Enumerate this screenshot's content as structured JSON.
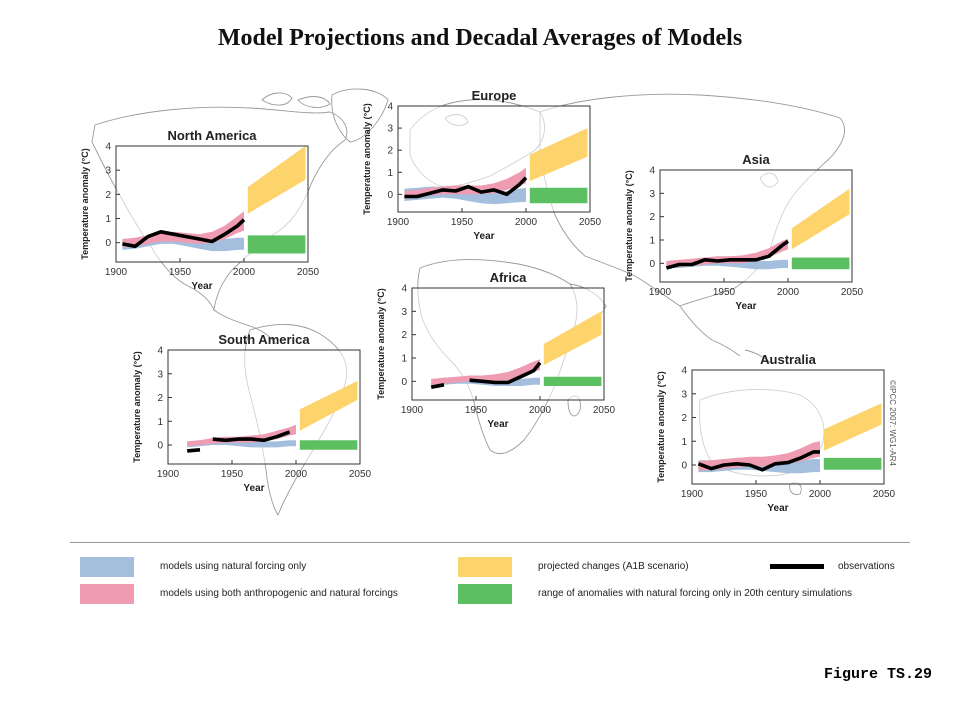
{
  "title": "Model Projections and Decadal Averages of Models",
  "figure_label": "Figure TS.29",
  "copyright": "©IPCC 2007: WG1-AR4",
  "colors": {
    "natural": "#a3bfdd",
    "anthro": "#ef9bb2",
    "projected": "#fdd36b",
    "natural_range": "#5cbf62",
    "observations": "#000000",
    "map_lines": "#999999"
  },
  "legend": {
    "natural": "models using natural forcing only",
    "anthro": "models using both anthropogenic and natural forcings",
    "projected": "projected changes (A1B scenario)",
    "natural_range": "range of anomalies with natural forcing only in 20th century simulations",
    "observations": "observations"
  },
  "chart_data": [
    {
      "type": "area",
      "title": "North America",
      "xlabel": "Year",
      "ylabel": "Temperature anomaly (°C)",
      "xlim": [
        1900,
        2050
      ],
      "ylim": [
        -0.8,
        4
      ],
      "xticks": [
        "1900",
        "1950",
        "2000",
        "2050"
      ],
      "yticks": [
        "0",
        "1",
        "2",
        "3",
        "4"
      ],
      "observations": {
        "x": [
          1905,
          1915,
          1925,
          1935,
          1945,
          1955,
          1965,
          1975,
          1985,
          1995,
          2000
        ],
        "y": [
          -0.05,
          -0.15,
          0.25,
          0.45,
          0.35,
          0.25,
          0.15,
          0.05,
          0.35,
          0.7,
          0.95
        ],
        "gaps": []
      },
      "natural_band": {
        "x": [
          1905,
          1915,
          1925,
          1935,
          1945,
          1955,
          1965,
          1975,
          1985,
          1995,
          2000
        ],
        "lower": [
          -0.3,
          -0.25,
          -0.15,
          -0.05,
          -0.05,
          -0.15,
          -0.25,
          -0.35,
          -0.35,
          -0.3,
          -0.3
        ],
        "upper": [
          0.15,
          0.2,
          0.3,
          0.4,
          0.4,
          0.3,
          0.2,
          0.15,
          0.15,
          0.2,
          0.2
        ]
      },
      "anthro_band": {
        "x": [
          1905,
          1915,
          1925,
          1935,
          1945,
          1955,
          1965,
          1975,
          1985,
          1995,
          2000
        ],
        "lower": [
          -0.2,
          -0.15,
          -0.05,
          0.05,
          0.05,
          0.0,
          -0.05,
          0.0,
          0.15,
          0.4,
          0.5
        ],
        "upper": [
          0.15,
          0.2,
          0.3,
          0.4,
          0.45,
          0.4,
          0.35,
          0.45,
          0.7,
          1.1,
          1.3
        ]
      },
      "projected_band": {
        "x": [
          2003,
          2048
        ],
        "lower": [
          1.2,
          2.6
        ],
        "upper": [
          2.3,
          4.0
        ]
      },
      "natural_range": {
        "x": [
          2003,
          2048
        ],
        "lower": [
          -0.45,
          -0.45
        ],
        "upper": [
          0.3,
          0.3
        ]
      }
    },
    {
      "type": "area",
      "title": "Europe",
      "xlabel": "Year",
      "ylabel": "Temperature anomaly (°C)",
      "xlim": [
        1900,
        2050
      ],
      "ylim": [
        -0.8,
        4
      ],
      "xticks": [
        "1900",
        "1950",
        "2000",
        "2050"
      ],
      "yticks": [
        "0",
        "1",
        "2",
        "3",
        "4"
      ],
      "observations": {
        "x": [
          1905,
          1915,
          1925,
          1935,
          1945,
          1955,
          1965,
          1975,
          1985,
          1995,
          2000
        ],
        "y": [
          -0.1,
          -0.1,
          0.05,
          0.2,
          0.15,
          0.35,
          0.1,
          0.2,
          0.0,
          0.45,
          0.75
        ],
        "gaps": []
      },
      "natural_band": {
        "x": [
          1905,
          1915,
          1925,
          1935,
          1945,
          1955,
          1965,
          1975,
          1985,
          1995,
          2000
        ],
        "lower": [
          -0.3,
          -0.25,
          -0.2,
          -0.15,
          -0.2,
          -0.3,
          -0.4,
          -0.45,
          -0.4,
          -0.35,
          -0.35
        ],
        "upper": [
          0.25,
          0.3,
          0.35,
          0.35,
          0.3,
          0.2,
          0.1,
          0.1,
          0.15,
          0.25,
          0.3
        ]
      },
      "anthro_band": {
        "x": [
          1905,
          1915,
          1925,
          1935,
          1945,
          1955,
          1965,
          1975,
          1985,
          1995,
          2000
        ],
        "lower": [
          -0.2,
          -0.15,
          -0.05,
          0.0,
          0.0,
          0.0,
          0.0,
          0.05,
          0.2,
          0.4,
          0.5
        ],
        "upper": [
          0.15,
          0.2,
          0.3,
          0.35,
          0.4,
          0.4,
          0.4,
          0.5,
          0.7,
          1.0,
          1.2
        ]
      },
      "projected_band": {
        "x": [
          2003,
          2048
        ],
        "lower": [
          0.6,
          1.7
        ],
        "upper": [
          1.8,
          3.0
        ]
      },
      "natural_range": {
        "x": [
          2003,
          2048
        ],
        "lower": [
          -0.4,
          -0.4
        ],
        "upper": [
          0.3,
          0.3
        ]
      }
    },
    {
      "type": "area",
      "title": "Asia",
      "xlabel": "Year",
      "ylabel": "Temperature anomaly (°C)",
      "xlim": [
        1900,
        2050
      ],
      "ylim": [
        -0.8,
        4
      ],
      "xticks": [
        "1900",
        "1950",
        "2000",
        "2050"
      ],
      "yticks": [
        "0",
        "1",
        "2",
        "3",
        "4"
      ],
      "observations": {
        "x": [
          1905,
          1915,
          1925,
          1935,
          1945,
          1955,
          1965,
          1975,
          1985,
          1995,
          2000
        ],
        "y": [
          -0.2,
          -0.05,
          -0.05,
          0.15,
          0.1,
          0.15,
          0.15,
          0.15,
          0.3,
          0.75,
          0.95
        ],
        "gaps": []
      },
      "natural_band": {
        "x": [
          1905,
          1915,
          1925,
          1935,
          1945,
          1955,
          1965,
          1975,
          1985,
          1995,
          2000
        ],
        "lower": [
          -0.2,
          -0.2,
          -0.15,
          -0.1,
          -0.1,
          -0.15,
          -0.2,
          -0.25,
          -0.25,
          -0.2,
          -0.2
        ],
        "upper": [
          0.1,
          0.1,
          0.15,
          0.2,
          0.2,
          0.15,
          0.15,
          0.1,
          0.1,
          0.15,
          0.15
        ]
      },
      "anthro_band": {
        "x": [
          1905,
          1915,
          1925,
          1935,
          1945,
          1955,
          1965,
          1975,
          1985,
          1995,
          2000
        ],
        "lower": [
          -0.2,
          -0.15,
          -0.1,
          -0.05,
          0.0,
          0.0,
          0.0,
          0.1,
          0.25,
          0.5,
          0.6
        ],
        "upper": [
          0.1,
          0.15,
          0.2,
          0.25,
          0.3,
          0.3,
          0.35,
          0.45,
          0.65,
          0.95,
          1.05
        ]
      },
      "projected_band": {
        "x": [
          2003,
          2048
        ],
        "lower": [
          0.6,
          2.1
        ],
        "upper": [
          1.5,
          3.2
        ]
      },
      "natural_range": {
        "x": [
          2003,
          2048
        ],
        "lower": [
          -0.25,
          -0.25
        ],
        "upper": [
          0.25,
          0.25
        ]
      }
    },
    {
      "type": "area",
      "title": "Africa",
      "xlabel": "Year",
      "ylabel": "Temperature anomaly (°C)",
      "xlim": [
        1900,
        2050
      ],
      "ylim": [
        -0.8,
        4
      ],
      "xticks": [
        "1900",
        "1950",
        "2000",
        "2050"
      ],
      "yticks": [
        "0",
        "1",
        "2",
        "3",
        "4"
      ],
      "observations": {
        "x": [
          1915,
          1925,
          1935,
          1945,
          1955,
          1965,
          1975,
          1985,
          1995,
          2000
        ],
        "y": [
          -0.25,
          -0.15,
          -0.05,
          0.05,
          0.0,
          -0.05,
          -0.05,
          0.2,
          0.45,
          0.8
        ],
        "gaps": [
          1,
          2
        ]
      },
      "natural_band": {
        "x": [
          1915,
          1925,
          1935,
          1945,
          1955,
          1965,
          1975,
          1985,
          1995,
          2000
        ],
        "lower": [
          -0.2,
          -0.15,
          -0.1,
          -0.1,
          -0.15,
          -0.2,
          -0.2,
          -0.2,
          -0.15,
          -0.15
        ],
        "upper": [
          0.1,
          0.15,
          0.2,
          0.2,
          0.15,
          0.1,
          0.1,
          0.1,
          0.15,
          0.15
        ]
      },
      "anthro_band": {
        "x": [
          1915,
          1925,
          1935,
          1945,
          1955,
          1965,
          1975,
          1985,
          1995,
          2000
        ],
        "lower": [
          -0.15,
          -0.1,
          -0.05,
          0.0,
          0.0,
          0.0,
          0.05,
          0.2,
          0.4,
          0.5
        ],
        "upper": [
          0.1,
          0.15,
          0.2,
          0.25,
          0.25,
          0.3,
          0.4,
          0.6,
          0.85,
          0.95
        ]
      },
      "projected_band": {
        "x": [
          2003,
          2048
        ],
        "lower": [
          0.7,
          2.0
        ],
        "upper": [
          1.6,
          3.0
        ]
      },
      "natural_range": {
        "x": [
          2003,
          2048
        ],
        "lower": [
          -0.2,
          -0.2
        ],
        "upper": [
          0.2,
          0.2
        ]
      }
    },
    {
      "type": "area",
      "title": "South America",
      "xlabel": "Year",
      "ylabel": "Temperature anomaly (°C)",
      "xlim": [
        1900,
        2050
      ],
      "ylim": [
        -0.8,
        4
      ],
      "xticks": [
        "1900",
        "1950",
        "2000",
        "2050"
      ],
      "yticks": [
        "0",
        "1",
        "2",
        "3",
        "4"
      ],
      "observations": {
        "x": [
          1915,
          1925,
          1935,
          1945,
          1955,
          1965,
          1975,
          1985,
          1995
        ],
        "y": [
          -0.25,
          -0.2,
          0.25,
          0.2,
          0.25,
          0.25,
          0.2,
          0.35,
          0.55
        ],
        "gaps": [
          1
        ]
      },
      "natural_band": {
        "x": [
          1915,
          1925,
          1935,
          1945,
          1955,
          1965,
          1975,
          1985,
          1995,
          2000
        ],
        "lower": [
          -0.1,
          -0.05,
          0.0,
          0.0,
          -0.05,
          -0.1,
          -0.1,
          -0.1,
          -0.05,
          -0.05
        ],
        "upper": [
          0.15,
          0.2,
          0.25,
          0.25,
          0.2,
          0.2,
          0.15,
          0.15,
          0.2,
          0.2
        ]
      },
      "anthro_band": {
        "x": [
          1915,
          1925,
          1935,
          1945,
          1955,
          1965,
          1975,
          1985,
          1995,
          2000
        ],
        "lower": [
          -0.05,
          0.0,
          0.05,
          0.1,
          0.1,
          0.1,
          0.15,
          0.25,
          0.4,
          0.45
        ],
        "upper": [
          0.15,
          0.2,
          0.3,
          0.35,
          0.35,
          0.4,
          0.45,
          0.6,
          0.75,
          0.85
        ]
      },
      "projected_band": {
        "x": [
          2003,
          2048
        ],
        "lower": [
          0.6,
          1.9
        ],
        "upper": [
          1.5,
          2.7
        ]
      },
      "natural_range": {
        "x": [
          2003,
          2048
        ],
        "lower": [
          -0.2,
          -0.2
        ],
        "upper": [
          0.2,
          0.2
        ]
      }
    },
    {
      "type": "area",
      "title": "Australia",
      "xlabel": "Year",
      "ylabel": "Temperature anomaly (°C)",
      "xlim": [
        1900,
        2050
      ],
      "ylim": [
        -0.8,
        4
      ],
      "xticks": [
        "1900",
        "1950",
        "2000",
        "2050"
      ],
      "yticks": [
        "0",
        "1",
        "2",
        "3",
        "4"
      ],
      "observations": {
        "x": [
          1905,
          1915,
          1925,
          1935,
          1945,
          1955,
          1965,
          1975,
          1985,
          1995,
          2000
        ],
        "y": [
          0.05,
          -0.15,
          0.0,
          0.05,
          0.0,
          -0.2,
          0.05,
          0.1,
          0.3,
          0.55,
          0.55
        ],
        "gaps": []
      },
      "natural_band": {
        "x": [
          1905,
          1915,
          1925,
          1935,
          1945,
          1955,
          1965,
          1975,
          1985,
          1995,
          2000
        ],
        "lower": [
          -0.3,
          -0.3,
          -0.25,
          -0.2,
          -0.2,
          -0.25,
          -0.3,
          -0.35,
          -0.35,
          -0.3,
          -0.3
        ],
        "upper": [
          0.2,
          0.2,
          0.25,
          0.3,
          0.3,
          0.25,
          0.2,
          0.2,
          0.2,
          0.25,
          0.25
        ]
      },
      "anthro_band": {
        "x": [
          1905,
          1915,
          1925,
          1935,
          1945,
          1955,
          1965,
          1975,
          1985,
          1995,
          2000
        ],
        "lower": [
          -0.25,
          -0.2,
          -0.15,
          -0.1,
          -0.05,
          -0.05,
          0.0,
          0.05,
          0.15,
          0.3,
          0.35
        ],
        "upper": [
          0.15,
          0.2,
          0.25,
          0.3,
          0.35,
          0.35,
          0.4,
          0.5,
          0.7,
          0.95,
          1.0
        ]
      },
      "projected_band": {
        "x": [
          2003,
          2048
        ],
        "lower": [
          0.6,
          1.7
        ],
        "upper": [
          1.5,
          2.6
        ]
      },
      "natural_range": {
        "x": [
          2003,
          2048
        ],
        "lower": [
          -0.2,
          -0.2
        ],
        "upper": [
          0.3,
          0.3
        ]
      }
    }
  ]
}
